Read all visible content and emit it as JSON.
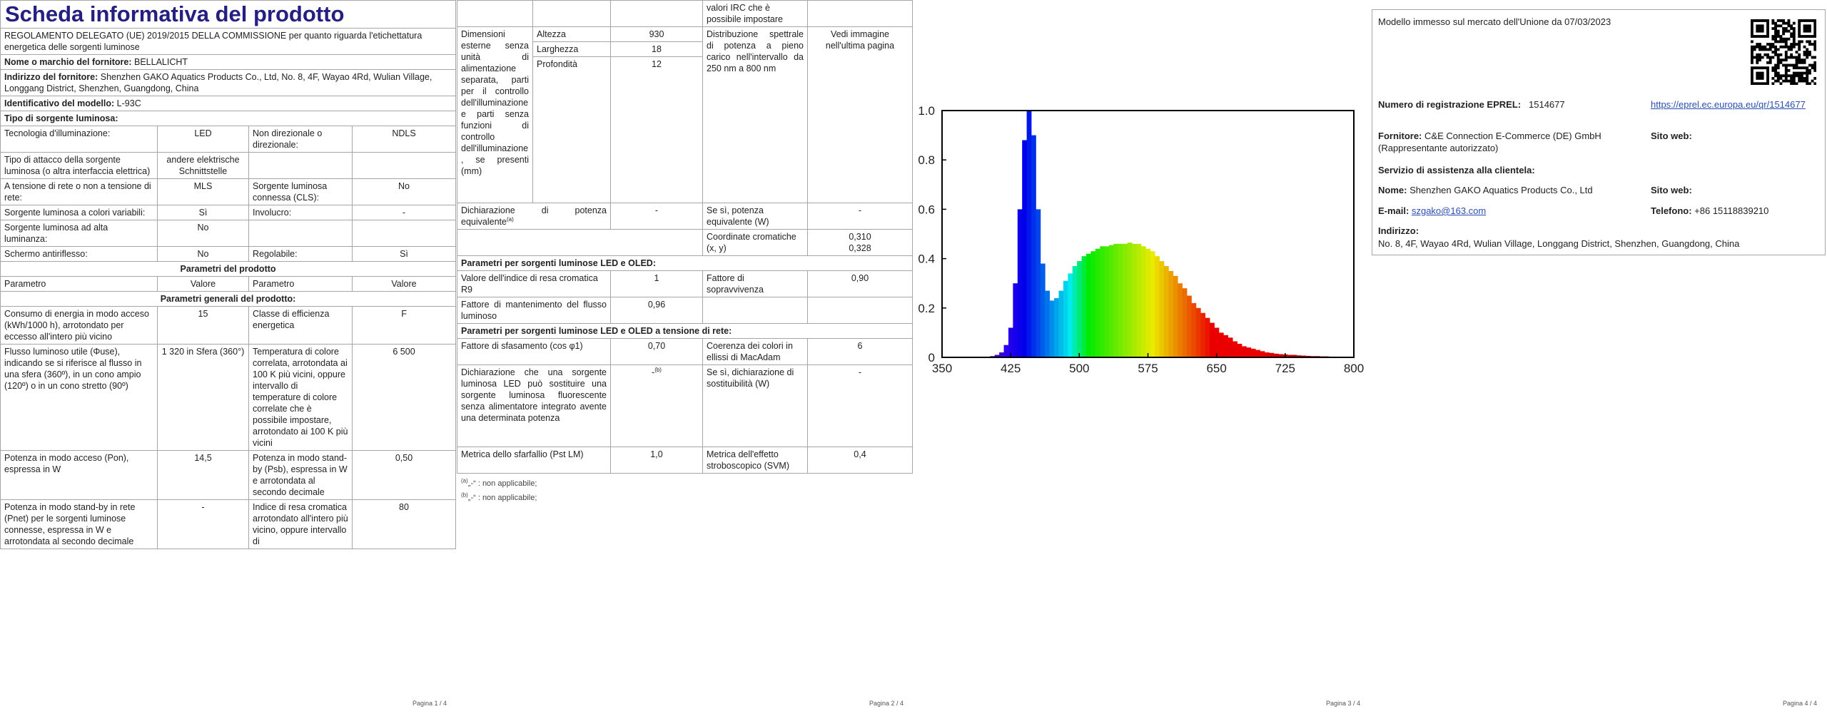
{
  "page1": {
    "title": "Scheda informativa del prodotto",
    "regulation": "REGOLAMENTO DELEGATO (UE) 2019/2015 DELLA COMMISSIONE per quanto riguarda l'etichettatura energetica delle sorgenti luminose",
    "supplier": {
      "label": "Nome o marchio del fornitore:",
      "value": "BELLALICHT"
    },
    "address": {
      "label": "Indirizzo del fornitore:",
      "value": "Shenzhen GAKO Aquatics Products Co., Ltd, No. 8, 4F, Wayao 4Rd, Wulian Village, Longgang District, Shenzhen, Guangdong, China"
    },
    "model": {
      "label": "Identificativo del modello:",
      "value": "L-93C"
    },
    "source_type": "Tipo di sorgente luminosa:",
    "rows": [
      [
        "Tecnologia d'illuminazione:",
        "LED",
        "Non direzionale o direzionale:",
        "NDLS"
      ],
      [
        "Tipo di attacco della sorgente luminosa (o altra interfaccia elettrica)",
        "andere elektrische Schnittstelle",
        null,
        null
      ],
      [
        "A tensione di rete o non a tensione di rete:",
        "MLS",
        "Sorgente luminosa connessa (CLS):",
        "No"
      ],
      [
        "Sorgente luminosa a colori variabili:",
        "Sì",
        "Involucro:",
        "-"
      ],
      [
        "Sorgente luminosa ad alta luminanza:",
        "No",
        null,
        null
      ],
      [
        "Schermo antiriflesso:",
        "No",
        "Regolabile:",
        "Sì"
      ]
    ],
    "product_params": "Parametri del prodotto",
    "header": [
      "Parametro",
      "Valore",
      "Parametro",
      "Valore"
    ],
    "general_params": "Parametri generali del prodotto:",
    "general_rows": [
      [
        "Consumo di energia in modo acceso (kWh/1000 h), arrotondato per eccesso all'intero più vicino",
        "15",
        "Classe di efficienza energetica",
        "F"
      ],
      [
        "Flusso luminoso utile (Φuse), indicando se si riferisce al flusso in una sfera (360º), in un cono ampio (120º) o in un cono stretto (90º)",
        "1 320 in Sfera (360°)",
        "Temperatura di colore correlata, arrotondata ai 100 K più vicini, oppure intervallo di temperature di colore correlate che è possibile impostare, arrotondato ai 100 K più vicini",
        "6 500"
      ],
      [
        "Potenza in modo acceso (Pon), espressa in W",
        "14,5",
        "Potenza in modo stand-by (Psb), espressa in W e arrotondata al secondo decimale",
        "0,50"
      ],
      [
        "Potenza in modo stand-by in rete (Pnet) per le sorgenti luminose connesse, espressa in W e arrotondata al secondo decimale",
        "-",
        "Indice di resa cromatica arrotondato all'intero più vicino, oppure intervallo di",
        "80"
      ]
    ],
    "footer": "Pagina 1 / 4"
  },
  "page2": {
    "irc_continued": "valori IRC che è possibile impostare",
    "dimensions": {
      "label": "Dimensioni esterne senza unità di alimentazione separata, parti per il controllo dell'illuminazione e parti senza funzioni di controllo dell'illuminazione, se presenti (mm)",
      "rows": [
        [
          "Altezza",
          "930"
        ],
        [
          "Larghezza",
          "18"
        ],
        [
          "Profondità",
          "12"
        ]
      ]
    },
    "spd": {
      "label": "Distribuzione spettrale di potenza a pieno carico nell'intervallo da 250 nm a 800 nm",
      "value": "Vedi immagine nell'ultima pagina"
    },
    "equivalent": {
      "label": "Dichiarazione di potenza equivalente",
      "note": "(a)",
      "value": "-",
      "label2": "Se sì, potenza equivalente (W)",
      "value2": "-"
    },
    "chromaticity": {
      "label": "Coordinate cromatiche (x, y)",
      "x": "0,310",
      "y": "0,328"
    },
    "led_heading": "Parametri per sorgenti luminose LED e OLED:",
    "r9": {
      "label": "Valore dell'indice di resa cromatica R9",
      "value": "1",
      "label2": "Fattore di sopravvivenza",
      "value2": "0,90"
    },
    "maintenance": {
      "label": "Fattore di mantenimento del flusso luminoso",
      "value": "0,96"
    },
    "mains_heading": "Parametri per sorgenti luminose LED e OLED a tensione di rete:",
    "phase": {
      "label": "Fattore di sfasamento (cos φ1)",
      "value": "0,70",
      "label2": "Coerenza dei colori in ellissi di MacAdam",
      "value2": "6"
    },
    "replacement": {
      "label": "Dichiarazione che una sorgente luminosa LED può sostituire una sorgente luminosa fluorescente senza alimentatore integrato avente una determinata potenza",
      "value": "-",
      "note": "(b)",
      "label2": "Se sì, dichiarazione di sostituibilità (W)",
      "value2": "-"
    },
    "flicker": {
      "label": "Metrica dello sfarfallio (Pst LM)",
      "value": "1,0",
      "label2": "Metrica dell'effetto stroboscopico (SVM)",
      "value2": "0,4"
    },
    "footnotes": [
      {
        "marker": "(a)",
        "text": "„-“ : non applicabile;"
      },
      {
        "marker": "(b)",
        "text": "„-“ : non applicabile;"
      }
    ],
    "footer": "Pagina 2 / 4"
  },
  "page3": {
    "footer": "Pagina 3 / 4"
  },
  "chart_data": {
    "type": "area",
    "x": [
      380,
      385,
      390,
      395,
      400,
      405,
      410,
      415,
      420,
      425,
      430,
      435,
      440,
      445,
      450,
      455,
      460,
      465,
      470,
      475,
      480,
      485,
      490,
      495,
      500,
      505,
      510,
      515,
      520,
      525,
      530,
      535,
      540,
      545,
      550,
      555,
      560,
      565,
      570,
      575,
      580,
      585,
      590,
      595,
      600,
      605,
      610,
      615,
      620,
      625,
      630,
      635,
      640,
      645,
      650,
      655,
      660,
      665,
      670,
      675,
      680,
      685,
      690,
      695,
      700,
      705,
      710,
      715,
      720,
      725,
      730,
      735,
      740,
      745,
      750,
      755,
      760,
      765,
      770,
      775,
      780
    ],
    "values": [
      0,
      0,
      0,
      0,
      0.002,
      0.005,
      0.01,
      0.02,
      0.05,
      0.12,
      0.3,
      0.6,
      0.88,
      1.0,
      0.9,
      0.6,
      0.38,
      0.27,
      0.23,
      0.24,
      0.27,
      0.31,
      0.34,
      0.37,
      0.39,
      0.41,
      0.42,
      0.43,
      0.44,
      0.45,
      0.45,
      0.455,
      0.46,
      0.46,
      0.46,
      0.465,
      0.46,
      0.46,
      0.45,
      0.44,
      0.43,
      0.41,
      0.39,
      0.37,
      0.35,
      0.33,
      0.3,
      0.28,
      0.25,
      0.22,
      0.2,
      0.18,
      0.16,
      0.14,
      0.12,
      0.1,
      0.09,
      0.08,
      0.065,
      0.055,
      0.045,
      0.04,
      0.035,
      0.03,
      0.025,
      0.02,
      0.018,
      0.015,
      0.013,
      0.012,
      0.01,
      0.01,
      0.008,
      0.007,
      0.006,
      0.005,
      0.005,
      0.004,
      0.004,
      0.003,
      0.003
    ],
    "xlim": [
      350,
      800
    ],
    "xticks": [
      350,
      425,
      500,
      575,
      650,
      725,
      800
    ],
    "ylim": [
      0,
      1
    ],
    "yticks": [
      0,
      0.2,
      0.4,
      0.6,
      0.8,
      {
        "value": 1,
        "label": "1.0"
      }
    ]
  },
  "page4": {
    "market_date": "Modello immesso sul mercato dell'Unione da 07/03/2023",
    "eprel": {
      "label": "Numero di registrazione EPREL:",
      "value": "1514677",
      "url": "https://eprel.ec.europa.eu/qr/1514677"
    },
    "supplier": {
      "label": "Fornitore:",
      "value": "C&E Connection E-Commerce (DE) GmbH (Rappresentante autorizzato)",
      "website": "Sito web:"
    },
    "service": "Servizio di assistenza alla clientela:",
    "name": {
      "label": "Nome:",
      "value": "Shenzhen GAKO Aquatics Products Co., Ltd",
      "website": "Sito web:"
    },
    "email": {
      "label": "E-mail:",
      "value": "szgako@163.com"
    },
    "phone": {
      "label": "Telefono:",
      "value": "+86 15118839210"
    },
    "address": {
      "label": "Indirizzo:",
      "value": "No. 8, 4F, Wayao 4Rd, Wulian Village, Longgang District, Shenzhen, Guangdong, China"
    },
    "footer": "Pagina 4 / 4"
  }
}
